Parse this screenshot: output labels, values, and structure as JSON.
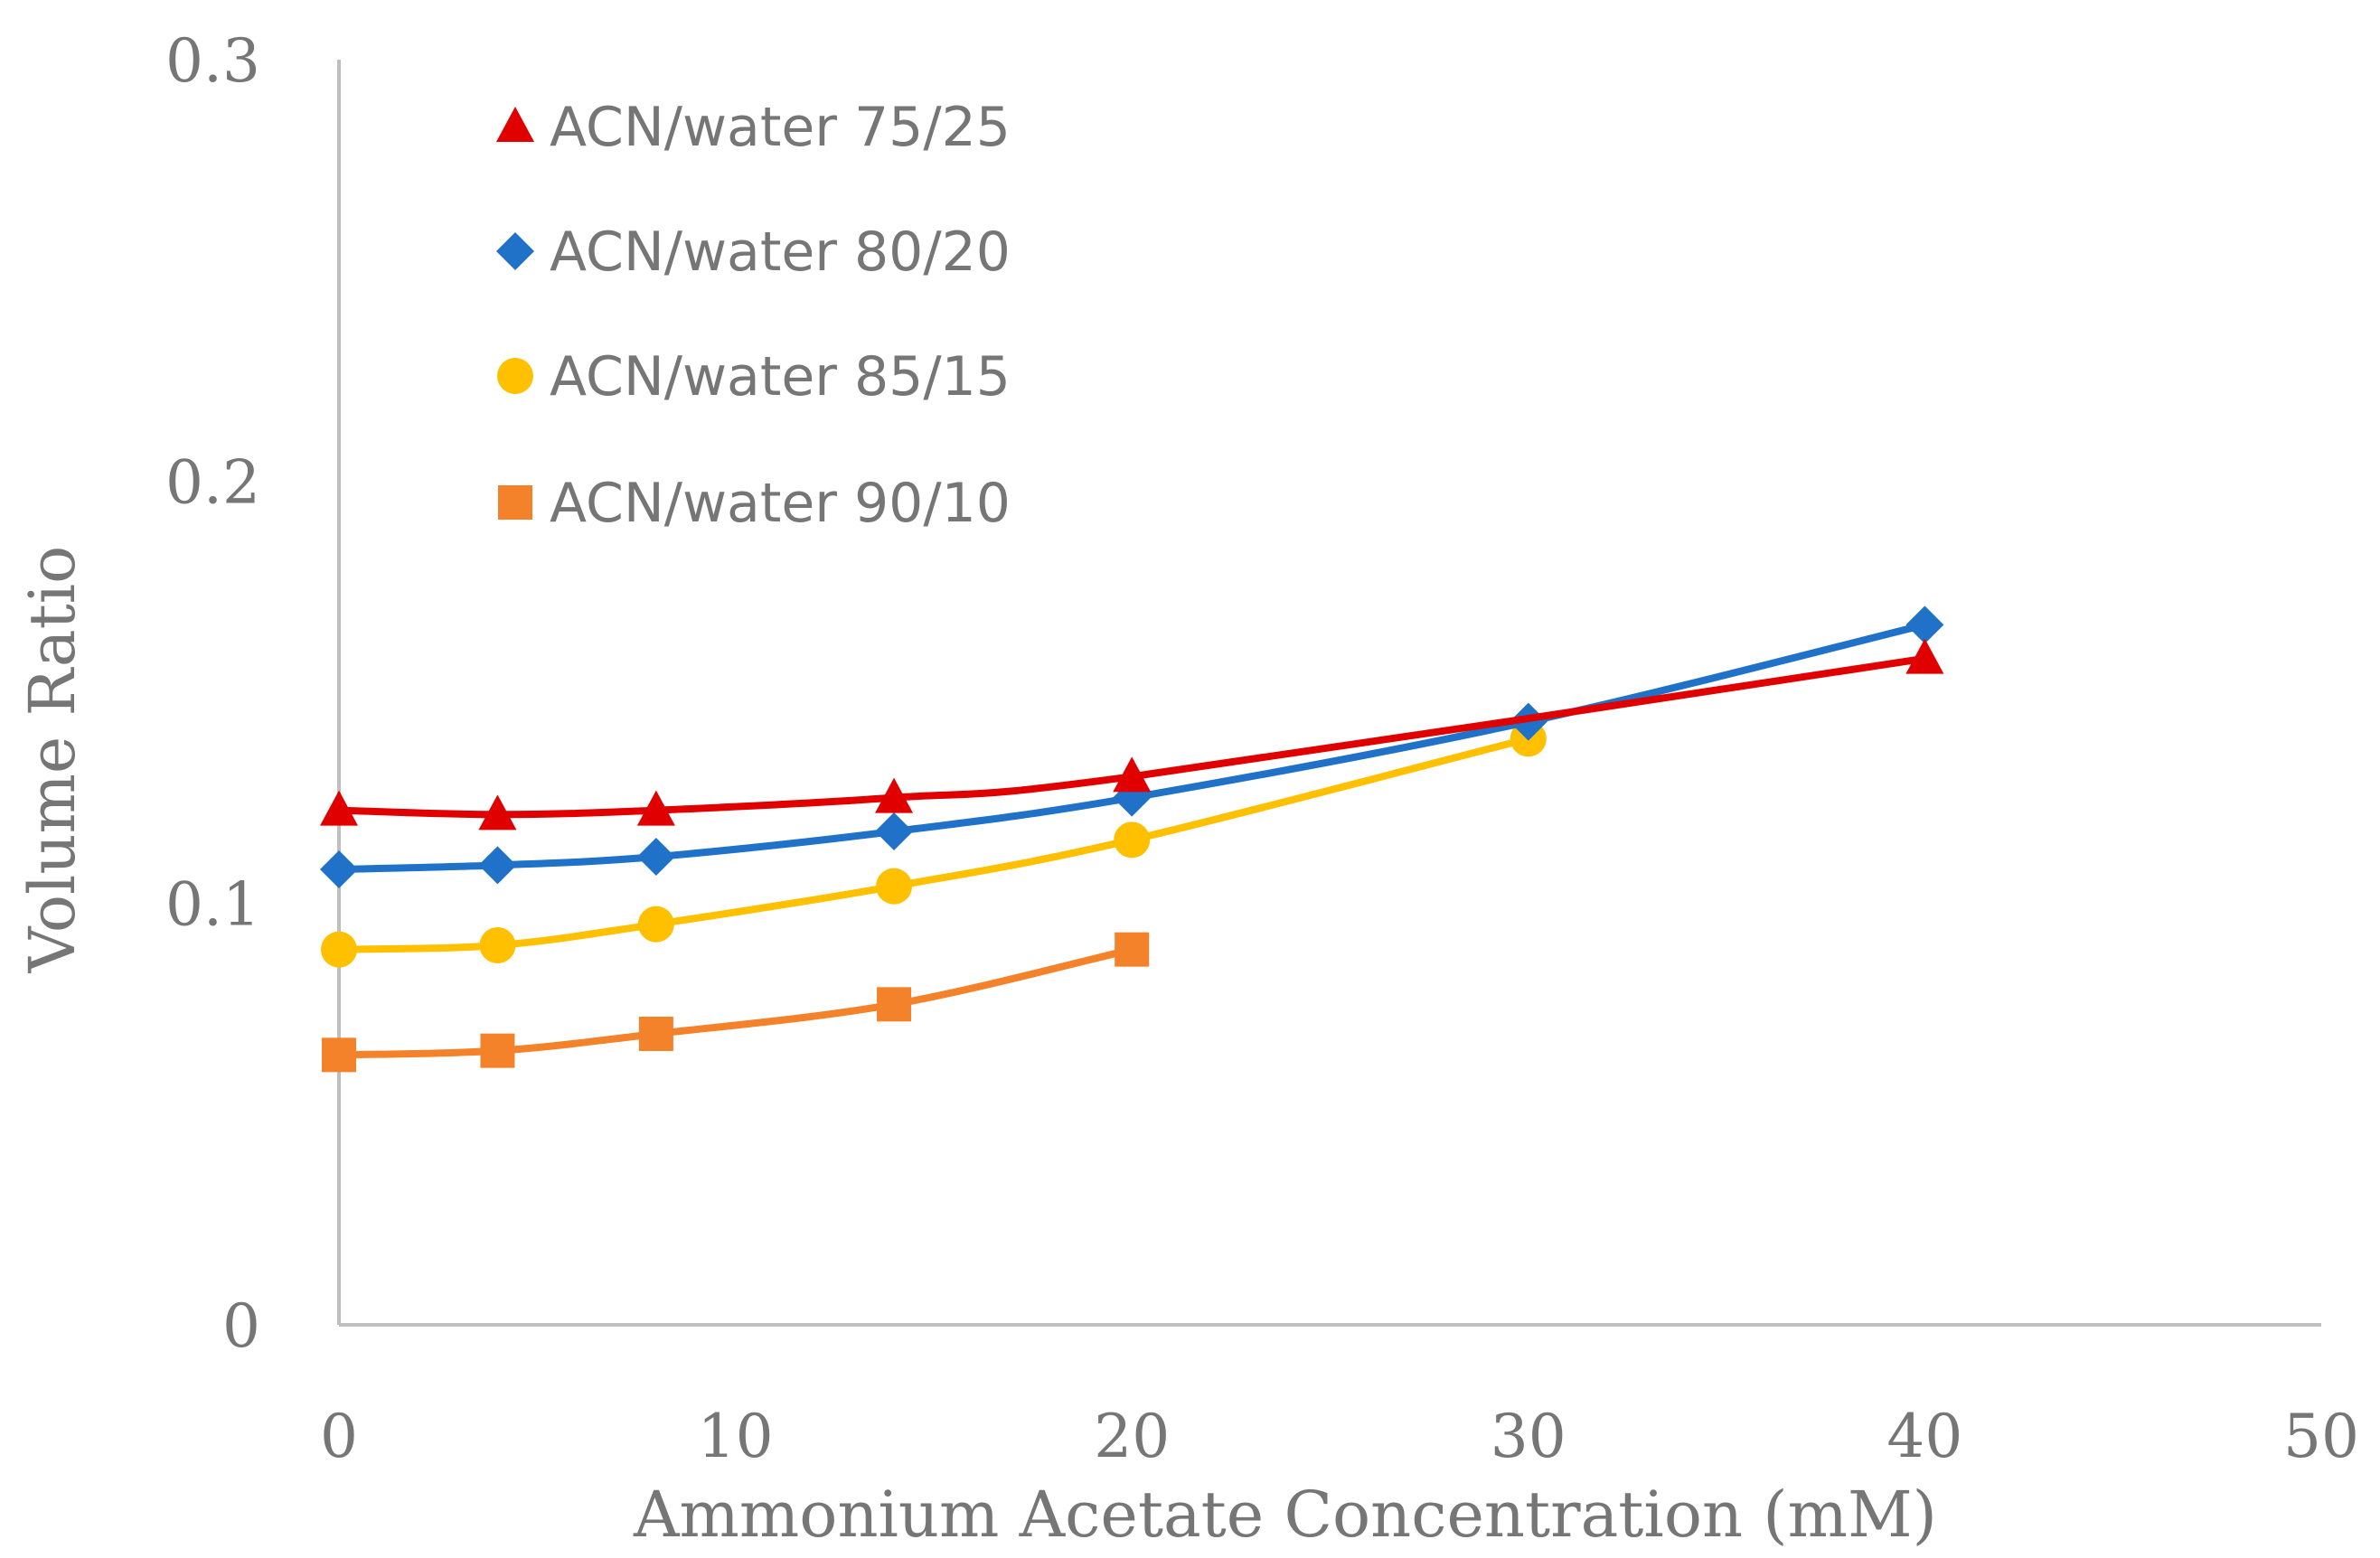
{
  "chart_data": {
    "type": "line",
    "title": "",
    "xlabel": "Ammonium Acetate Concentration (mM)",
    "ylabel": "Volume Ratio",
    "xlim": [
      0,
      50
    ],
    "ylim": [
      0,
      0.3
    ],
    "x_ticks": [
      "0",
      "10",
      "20",
      "30",
      "40",
      "50"
    ],
    "y_ticks": [
      "0",
      "0.1",
      "0.2",
      "0.3"
    ],
    "grid": false,
    "legend_position": "top-left",
    "series": [
      {
        "name": "ACN/water 75/25",
        "marker": "triangle",
        "color": "#E00000",
        "x": [
          0,
          4,
          8,
          14,
          20,
          40
        ],
        "y": [
          0.122,
          0.121,
          0.122,
          0.125,
          0.13,
          0.158
        ]
      },
      {
        "name": "ACN/water 80/20",
        "marker": "diamond",
        "color": "#1F72C8",
        "x": [
          0,
          4,
          8,
          14,
          20,
          30,
          40
        ],
        "y": [
          0.108,
          0.109,
          0.111,
          0.117,
          0.125,
          0.143,
          0.166
        ]
      },
      {
        "name": "ACN/water 85/15",
        "marker": "circle",
        "color": "#FFC000",
        "x": [
          0,
          4,
          8,
          14,
          20,
          30
        ],
        "y": [
          0.089,
          0.09,
          0.095,
          0.104,
          0.115,
          0.139
        ]
      },
      {
        "name": "ACN/water 90/10",
        "marker": "square",
        "color": "#F4822A",
        "x": [
          0,
          4,
          8,
          14,
          20
        ],
        "y": [
          0.064,
          0.065,
          0.069,
          0.076,
          0.089
        ]
      }
    ]
  }
}
